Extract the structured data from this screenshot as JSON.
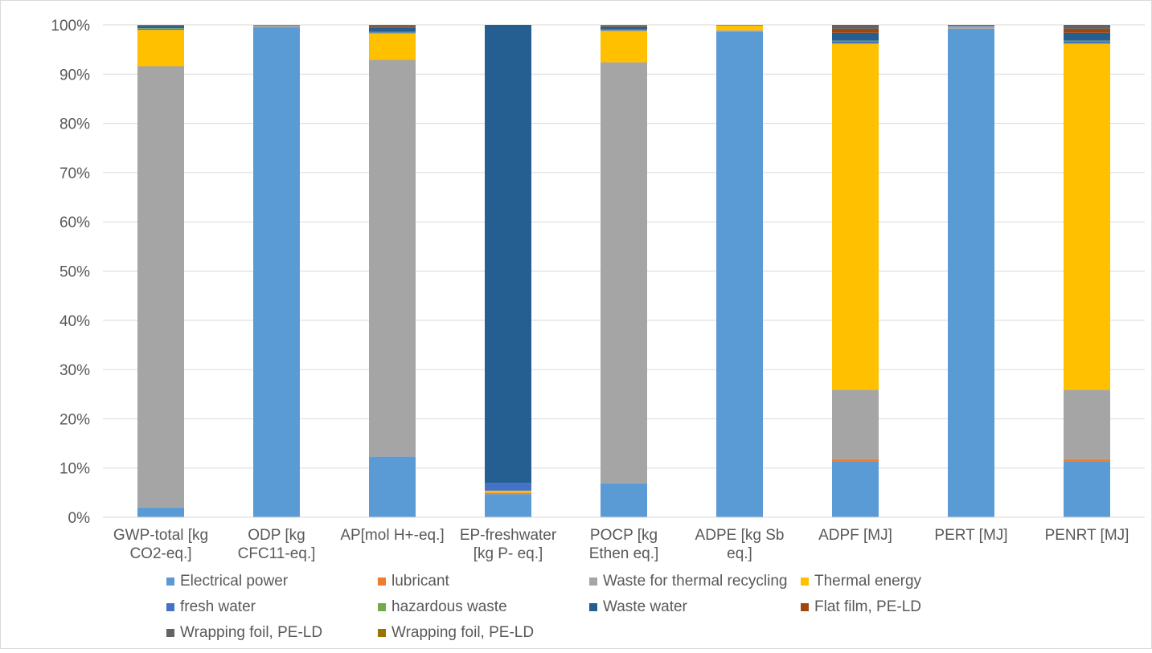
{
  "chart_data": {
    "type": "bar",
    "stacked": "percent",
    "title": "",
    "xlabel": "",
    "ylabel": "",
    "ylim": [
      0,
      100
    ],
    "y_ticks": [
      "0%",
      "10%",
      "20%",
      "30%",
      "40%",
      "50%",
      "60%",
      "70%",
      "80%",
      "90%",
      "100%"
    ],
    "grid": true,
    "legend_position": "bottom",
    "categories": [
      [
        "GWP-total [kg",
        "CO2-eq.]"
      ],
      [
        "ODP [kg",
        "CFC11-eq.]"
      ],
      [
        "AP[mol H+-eq.]"
      ],
      [
        "EP-freshwater",
        "[kg P- eq.]"
      ],
      [
        "POCP [kg",
        "Ethen eq.]"
      ],
      [
        "ADPE [kg Sb",
        "eq.]"
      ],
      [
        "ADPF [MJ]"
      ],
      [
        "PERT [MJ]"
      ],
      [
        "PENRT [MJ]"
      ]
    ],
    "series": [
      {
        "name": "Electrical power",
        "color": "#5b9bd5",
        "values": [
          2.0,
          99.5,
          12.3,
          4.7,
          6.9,
          98.6,
          11.4,
          99.2,
          11.4
        ]
      },
      {
        "name": "lubricant",
        "color": "#ed7d31",
        "values": [
          0.0,
          0.0,
          0.0,
          0.3,
          0.0,
          0.0,
          0.4,
          0.0,
          0.4
        ]
      },
      {
        "name": "Waste for thermal recycling",
        "color": "#a5a5a5",
        "values": [
          89.6,
          0.4,
          80.6,
          0.0,
          85.5,
          0.3,
          14.1,
          0.5,
          14.1
        ]
      },
      {
        "name": "Thermal energy",
        "color": "#ffc000",
        "values": [
          7.4,
          0.0,
          5.4,
          0.4,
          6.4,
          1.0,
          70.3,
          0.0,
          70.3
        ]
      },
      {
        "name": "fresh water",
        "color": "#4472c4",
        "values": [
          0.2,
          0.0,
          0.2,
          1.6,
          0.2,
          0.0,
          0.5,
          0.1,
          0.5
        ]
      },
      {
        "name": "hazardous waste",
        "color": "#70ad47",
        "values": [
          0.1,
          0.0,
          0.1,
          0.0,
          0.1,
          0.0,
          0.1,
          0.0,
          0.1
        ]
      },
      {
        "name": "Waste water",
        "color": "#255e91",
        "values": [
          0.5,
          0.0,
          0.8,
          93.0,
          0.5,
          0.0,
          1.6,
          0.1,
          1.6
        ]
      },
      {
        "name": "Flat film, PE-LD",
        "color": "#9e480e",
        "values": [
          0.1,
          0.0,
          0.3,
          0.0,
          0.1,
          0.0,
          0.8,
          0.0,
          0.8
        ]
      },
      {
        "name": "Wrapping foil, PE-LD",
        "color": "#636363",
        "values": [
          0.1,
          0.1,
          0.3,
          0.0,
          0.2,
          0.1,
          0.8,
          0.1,
          0.8
        ]
      },
      {
        "name": "Wrapping foil, PE-LD",
        "color": "#997300",
        "values": [
          0.0,
          0.0,
          0.0,
          0.0,
          0.1,
          0.0,
          0.0,
          0.0,
          0.0
        ]
      }
    ]
  }
}
